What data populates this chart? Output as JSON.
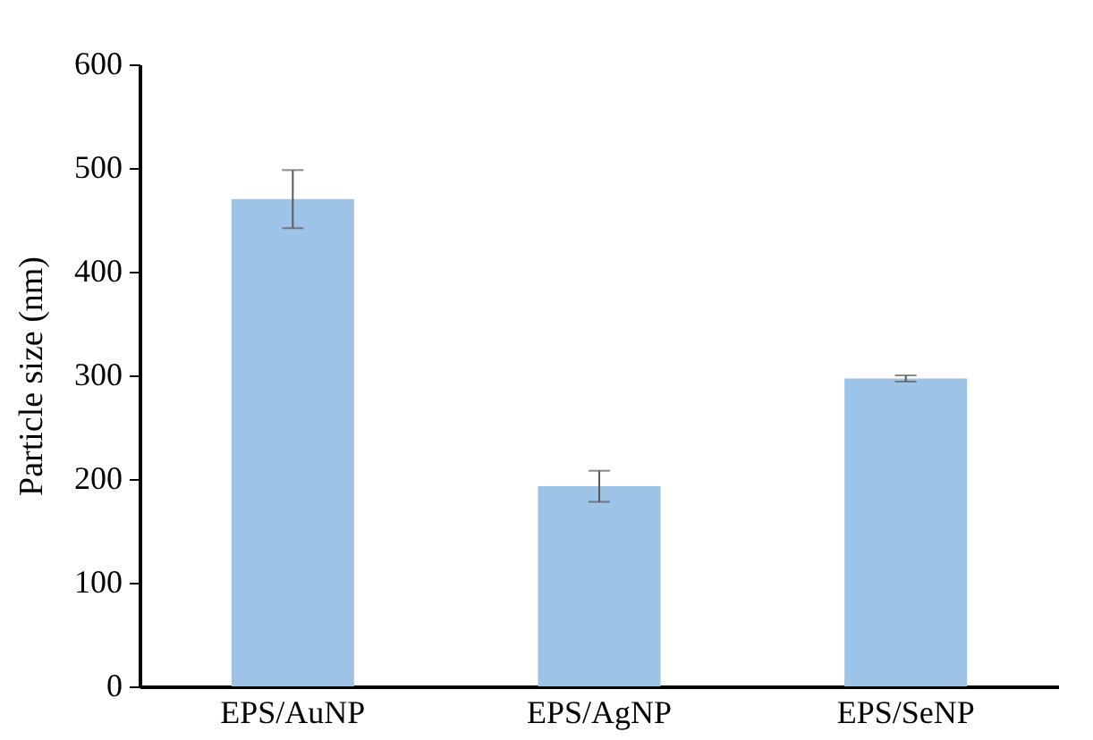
{
  "chart_data": {
    "type": "bar",
    "ylabel": "Particle size (nm)",
    "categories": [
      "EPS/AuNP",
      "EPS/AgNP",
      "EPS/SeNP"
    ],
    "values": [
      470,
      193,
      297
    ],
    "errors": [
      28,
      15,
      3
    ],
    "color": "#9dc3e6",
    "ylim": [
      0,
      600
    ],
    "yticks": [
      0,
      100,
      200,
      300,
      400,
      500,
      600
    ],
    "grid": false
  }
}
